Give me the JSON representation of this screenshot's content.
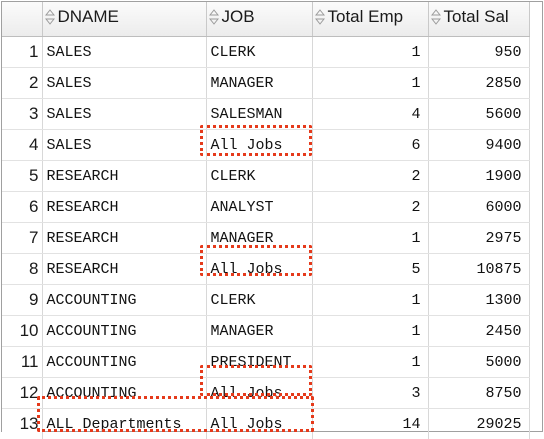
{
  "columns": {
    "dname": "DNAME",
    "job": "JOB",
    "total_emp": "Total Emp",
    "total_sal": "Total Sal"
  },
  "rows": [
    {
      "num": "1",
      "dname": "SALES",
      "job": "CLERK",
      "emp": "1",
      "sal": "950"
    },
    {
      "num": "2",
      "dname": "SALES",
      "job": "MANAGER",
      "emp": "1",
      "sal": "2850"
    },
    {
      "num": "3",
      "dname": "SALES",
      "job": "SALESMAN",
      "emp": "4",
      "sal": "5600"
    },
    {
      "num": "4",
      "dname": "SALES",
      "job": "All Jobs",
      "emp": "6",
      "sal": "9400"
    },
    {
      "num": "5",
      "dname": "RESEARCH",
      "job": "CLERK",
      "emp": "2",
      "sal": "1900"
    },
    {
      "num": "6",
      "dname": "RESEARCH",
      "job": "ANALYST",
      "emp": "2",
      "sal": "6000"
    },
    {
      "num": "7",
      "dname": "RESEARCH",
      "job": "MANAGER",
      "emp": "1",
      "sal": "2975"
    },
    {
      "num": "8",
      "dname": "RESEARCH",
      "job": "All Jobs",
      "emp": "5",
      "sal": "10875"
    },
    {
      "num": "9",
      "dname": "ACCOUNTING",
      "job": "CLERK",
      "emp": "1",
      "sal": "1300"
    },
    {
      "num": "10",
      "dname": "ACCOUNTING",
      "job": "MANAGER",
      "emp": "1",
      "sal": "2450"
    },
    {
      "num": "11",
      "dname": "ACCOUNTING",
      "job": "PRESIDENT",
      "emp": "1",
      "sal": "5000"
    },
    {
      "num": "12",
      "dname": "ACCOUNTING",
      "job": "All Jobs",
      "emp": "3",
      "sal": "8750"
    },
    {
      "num": "13",
      "dname": "ALL Departments",
      "job": "All Jobs",
      "emp": "14",
      "sal": "29025"
    }
  ],
  "colors": {
    "highlight": "#e53a1b",
    "header_bg": "#f0f0f0",
    "grid_line": "#d8d8d8"
  },
  "icons": {
    "sort": "sort-arrows-icon"
  }
}
